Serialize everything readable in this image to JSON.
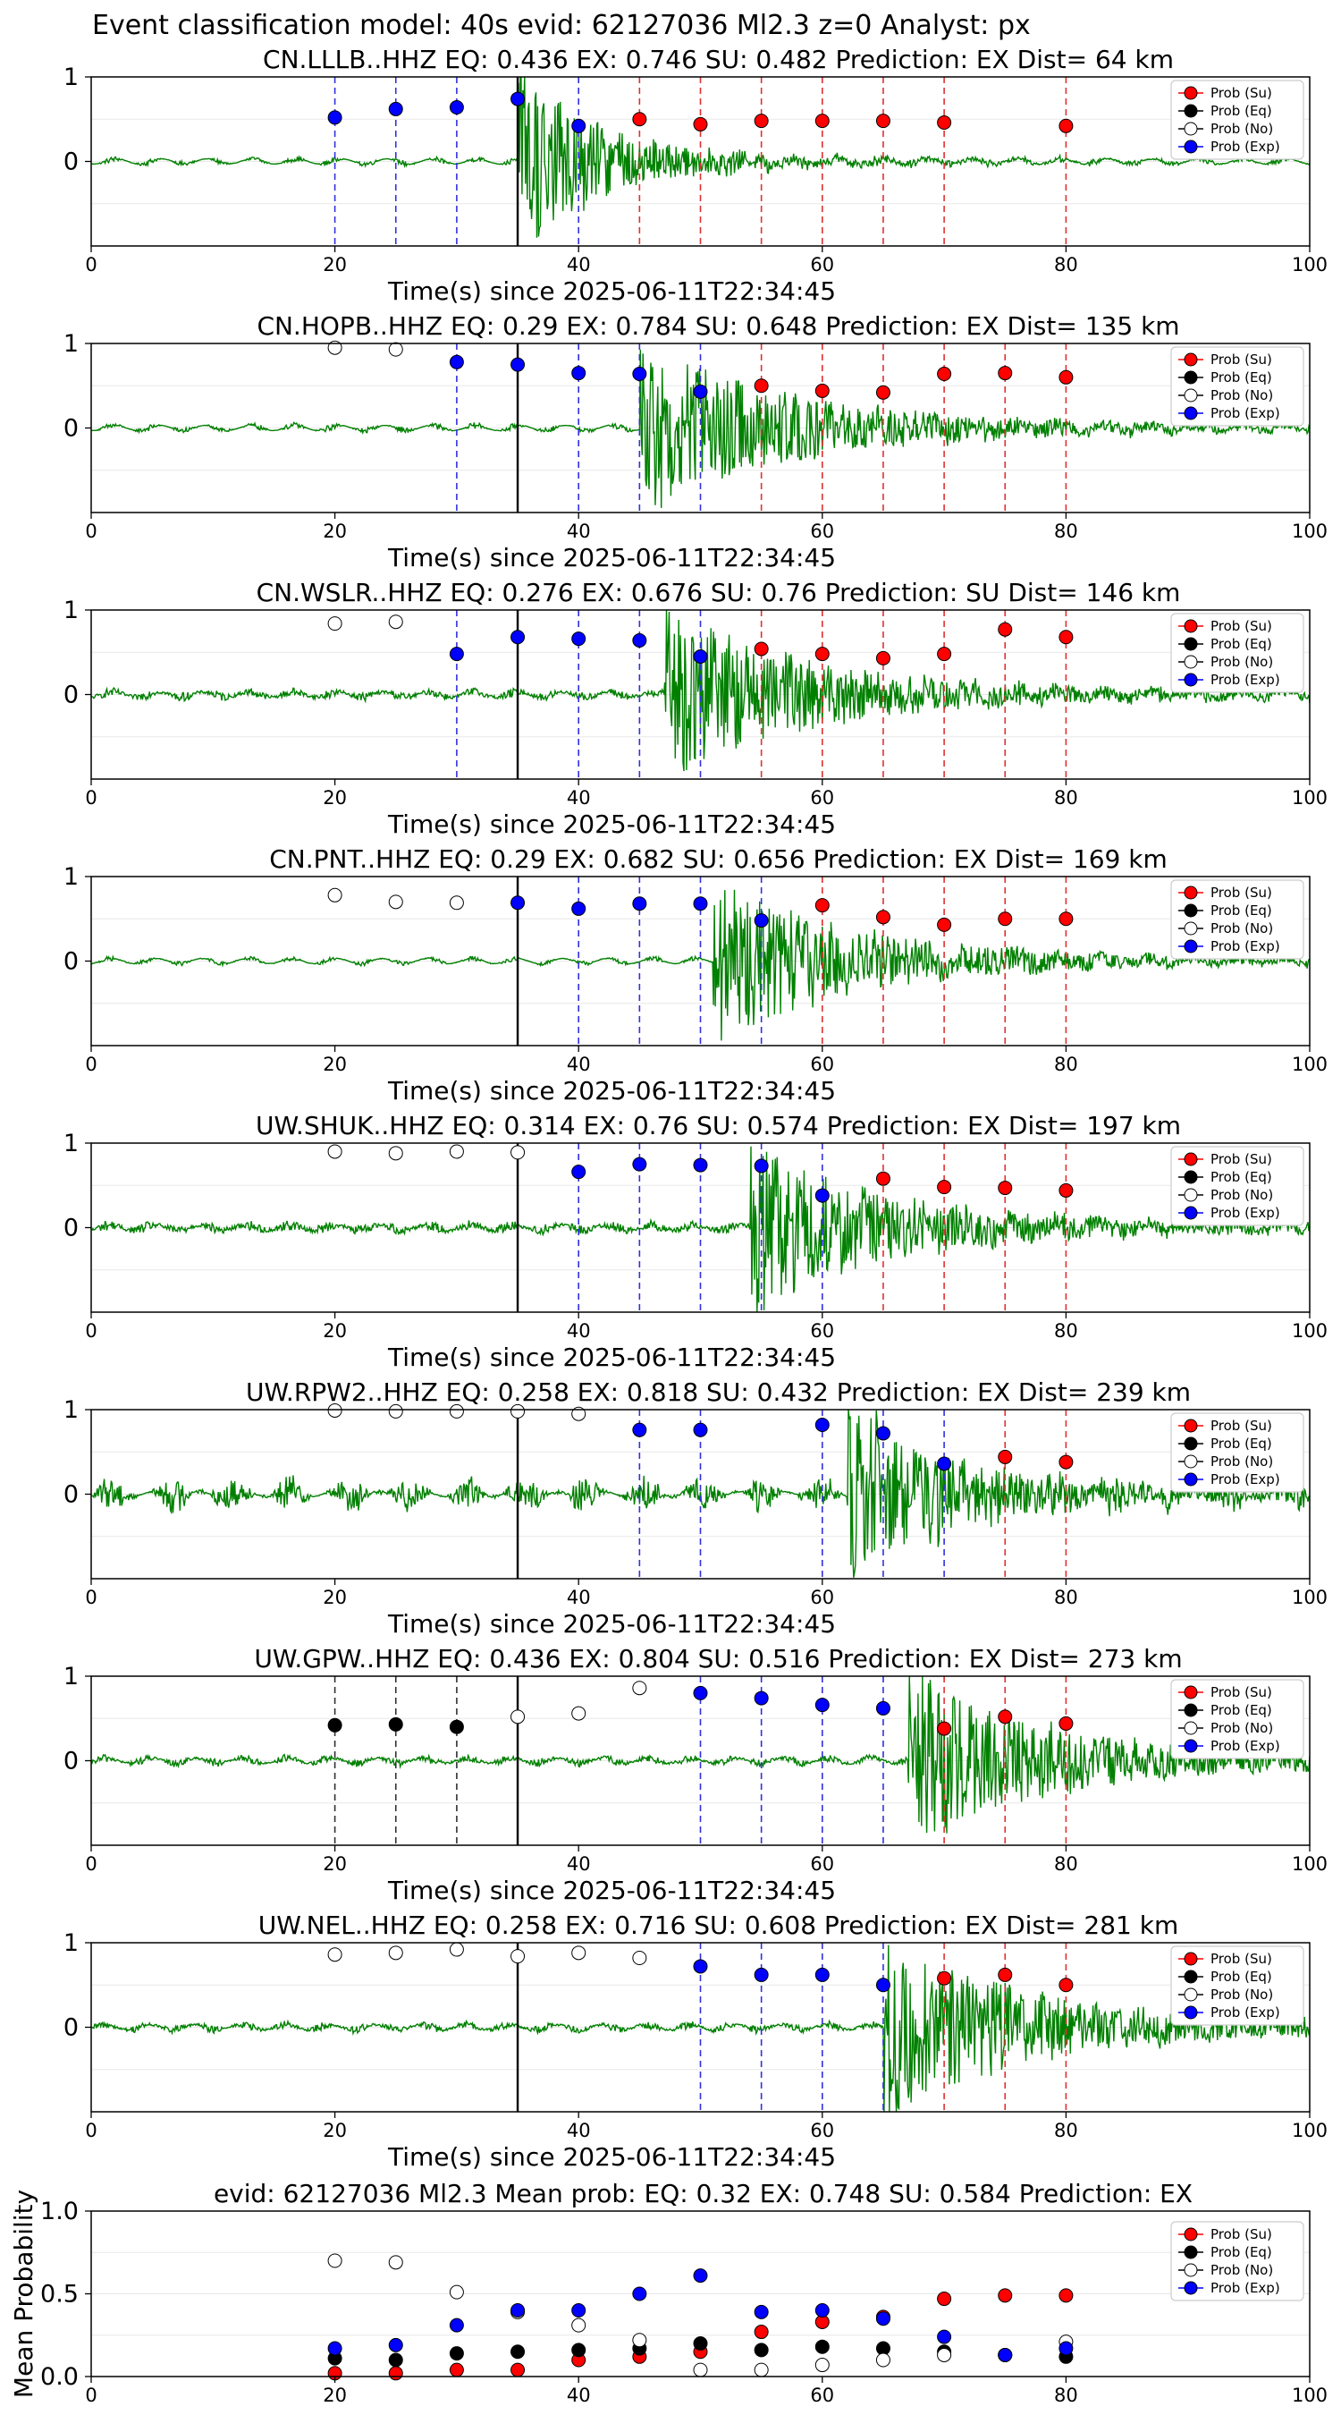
{
  "suptitle": "Event classification model: 40s evid: 62127036 Ml2.3 z=0 Analyst: px",
  "legend_labels": [
    "Prob (Su)",
    "Prob (Eq)",
    "Prob (No)",
    "Prob (Exp)"
  ],
  "colors": {
    "su": "#ff0000",
    "eq": "#000000",
    "no": "#ffffff",
    "exp": "#0000ff",
    "trace": "#008000",
    "line_su": "#e03030",
    "line_exp": "#3030e0",
    "line_eq": "#303030"
  },
  "chart_data": [
    {
      "type": "scatter",
      "title": "CN.LLLB..HHZ   EQ: 0.436  EX: 0.746  SU: 0.482   Prediction: EX    Dist= 64 km",
      "xlabel": "Time(s) since 2025-06-11T22:34:45",
      "xlim": [
        0,
        100
      ],
      "ylim": [
        -1,
        1
      ],
      "xticks": [
        0,
        20,
        40,
        60,
        80,
        100
      ],
      "yticks": [
        0,
        1
      ],
      "pick_time": 35,
      "signal": {
        "onset": 35,
        "amp": 1.0,
        "duration": 16,
        "noise": 0.025
      },
      "points": [
        {
          "t": 20,
          "cls": "exp",
          "p": 0.52
        },
        {
          "t": 25,
          "cls": "exp",
          "p": 0.62
        },
        {
          "t": 30,
          "cls": "exp",
          "p": 0.64
        },
        {
          "t": 35,
          "cls": "exp",
          "p": 0.74
        },
        {
          "t": 40,
          "cls": "exp",
          "p": 0.42
        },
        {
          "t": 45,
          "cls": "su",
          "p": 0.5
        },
        {
          "t": 50,
          "cls": "su",
          "p": 0.44
        },
        {
          "t": 55,
          "cls": "su",
          "p": 0.48
        },
        {
          "t": 60,
          "cls": "su",
          "p": 0.48
        },
        {
          "t": 65,
          "cls": "su",
          "p": 0.48
        },
        {
          "t": 70,
          "cls": "su",
          "p": 0.46
        },
        {
          "t": 80,
          "cls": "su",
          "p": 0.42
        }
      ]
    },
    {
      "type": "scatter",
      "title": "CN.HOPB..HHZ   EQ: 0.29  EX: 0.784  SU: 0.648   Prediction: EX    Dist= 135 km",
      "xlabel": "Time(s) since 2025-06-11T22:34:45",
      "xlim": [
        0,
        100
      ],
      "ylim": [
        -1,
        1
      ],
      "xticks": [
        0,
        20,
        40,
        60,
        80,
        100
      ],
      "yticks": [
        0,
        1
      ],
      "pick_time": 35,
      "signal": {
        "onset": 45,
        "amp": 0.9,
        "duration": 28,
        "noise": 0.03
      },
      "points": [
        {
          "t": 20,
          "cls": "no",
          "p": 0.95
        },
        {
          "t": 25,
          "cls": "no",
          "p": 0.93
        },
        {
          "t": 30,
          "cls": "exp",
          "p": 0.78
        },
        {
          "t": 35,
          "cls": "exp",
          "p": 0.75
        },
        {
          "t": 40,
          "cls": "exp",
          "p": 0.65
        },
        {
          "t": 45,
          "cls": "exp",
          "p": 0.64
        },
        {
          "t": 50,
          "cls": "exp",
          "p": 0.43
        },
        {
          "t": 55,
          "cls": "su",
          "p": 0.5
        },
        {
          "t": 60,
          "cls": "su",
          "p": 0.44
        },
        {
          "t": 65,
          "cls": "su",
          "p": 0.42
        },
        {
          "t": 70,
          "cls": "su",
          "p": 0.64
        },
        {
          "t": 75,
          "cls": "su",
          "p": 0.65
        },
        {
          "t": 80,
          "cls": "su",
          "p": 0.6
        }
      ]
    },
    {
      "type": "scatter",
      "title": "CN.WSLR..HHZ   EQ: 0.276  EX: 0.676  SU: 0.76   Prediction: SU    Dist= 146 km",
      "xlabel": "Time(s) since 2025-06-11T22:34:45",
      "xlim": [
        0,
        100
      ],
      "ylim": [
        -1,
        1
      ],
      "xticks": [
        0,
        20,
        40,
        60,
        80,
        100
      ],
      "yticks": [
        0,
        1
      ],
      "pick_time": 35,
      "signal": {
        "onset": 47,
        "amp": 0.9,
        "duration": 28,
        "noise": 0.06
      },
      "points": [
        {
          "t": 20,
          "cls": "no",
          "p": 0.84
        },
        {
          "t": 25,
          "cls": "no",
          "p": 0.86
        },
        {
          "t": 30,
          "cls": "exp",
          "p": 0.48
        },
        {
          "t": 35,
          "cls": "exp",
          "p": 0.68
        },
        {
          "t": 40,
          "cls": "exp",
          "p": 0.66
        },
        {
          "t": 45,
          "cls": "exp",
          "p": 0.64
        },
        {
          "t": 50,
          "cls": "exp",
          "p": 0.45
        },
        {
          "t": 55,
          "cls": "su",
          "p": 0.54
        },
        {
          "t": 60,
          "cls": "su",
          "p": 0.48
        },
        {
          "t": 65,
          "cls": "su",
          "p": 0.43
        },
        {
          "t": 70,
          "cls": "su",
          "p": 0.48
        },
        {
          "t": 75,
          "cls": "su",
          "p": 0.77
        },
        {
          "t": 80,
          "cls": "su",
          "p": 0.68
        }
      ]
    },
    {
      "type": "scatter",
      "title": "CN.PNT..HHZ   EQ: 0.29  EX: 0.682  SU: 0.656   Prediction: EX    Dist= 169 km",
      "xlabel": "Time(s) since 2025-06-11T22:34:45",
      "xlim": [
        0,
        100
      ],
      "ylim": [
        -1,
        1
      ],
      "xticks": [
        0,
        20,
        40,
        60,
        80,
        100
      ],
      "yticks": [
        0,
        1
      ],
      "pick_time": 35,
      "signal": {
        "onset": 51,
        "amp": 0.9,
        "duration": 26,
        "noise": 0.02
      },
      "points": [
        {
          "t": 20,
          "cls": "no",
          "p": 0.78
        },
        {
          "t": 25,
          "cls": "no",
          "p": 0.7
        },
        {
          "t": 30,
          "cls": "no",
          "p": 0.69
        },
        {
          "t": 35,
          "cls": "exp",
          "p": 0.69
        },
        {
          "t": 40,
          "cls": "exp",
          "p": 0.62
        },
        {
          "t": 45,
          "cls": "exp",
          "p": 0.68
        },
        {
          "t": 50,
          "cls": "exp",
          "p": 0.68
        },
        {
          "t": 55,
          "cls": "exp",
          "p": 0.48
        },
        {
          "t": 60,
          "cls": "su",
          "p": 0.66
        },
        {
          "t": 65,
          "cls": "su",
          "p": 0.52
        },
        {
          "t": 70,
          "cls": "su",
          "p": 0.43
        },
        {
          "t": 75,
          "cls": "su",
          "p": 0.5
        },
        {
          "t": 80,
          "cls": "su",
          "p": 0.5
        }
      ]
    },
    {
      "type": "scatter",
      "title": "UW.SHUK..HHZ   EQ: 0.314  EX: 0.76  SU: 0.574   Prediction: EX    Dist= 197 km",
      "xlabel": "Time(s) since 2025-06-11T22:34:45",
      "xlim": [
        0,
        100
      ],
      "ylim": [
        -1,
        1
      ],
      "xticks": [
        0,
        20,
        40,
        60,
        80,
        100
      ],
      "yticks": [
        0,
        1
      ],
      "pick_time": 35,
      "signal": {
        "onset": 54,
        "amp": 0.9,
        "duration": 26,
        "noise": 0.07
      },
      "points": [
        {
          "t": 20,
          "cls": "no",
          "p": 0.9
        },
        {
          "t": 25,
          "cls": "no",
          "p": 0.88
        },
        {
          "t": 30,
          "cls": "no",
          "p": 0.9
        },
        {
          "t": 35,
          "cls": "no",
          "p": 0.89
        },
        {
          "t": 40,
          "cls": "exp",
          "p": 0.66
        },
        {
          "t": 45,
          "cls": "exp",
          "p": 0.75
        },
        {
          "t": 50,
          "cls": "exp",
          "p": 0.74
        },
        {
          "t": 55,
          "cls": "exp",
          "p": 0.73
        },
        {
          "t": 60,
          "cls": "exp",
          "p": 0.38
        },
        {
          "t": 65,
          "cls": "su",
          "p": 0.58
        },
        {
          "t": 70,
          "cls": "su",
          "p": 0.48
        },
        {
          "t": 75,
          "cls": "su",
          "p": 0.47
        },
        {
          "t": 80,
          "cls": "su",
          "p": 0.44
        }
      ]
    },
    {
      "type": "scatter",
      "title": "UW.RPW2..HHZ   EQ: 0.258  EX: 0.818  SU: 0.432   Prediction: EX    Dist= 239 km",
      "xlabel": "Time(s) since 2025-06-11T22:34:45",
      "xlim": [
        0,
        100
      ],
      "ylim": [
        -1,
        1
      ],
      "xticks": [
        0,
        20,
        40,
        60,
        80,
        100
      ],
      "yticks": [
        0,
        1
      ],
      "pick_time": 35,
      "signal": {
        "onset": 62,
        "amp": 0.85,
        "duration": 22,
        "noise": 0.15
      },
      "points": [
        {
          "t": 20,
          "cls": "no",
          "p": 0.99
        },
        {
          "t": 25,
          "cls": "no",
          "p": 0.98
        },
        {
          "t": 30,
          "cls": "no",
          "p": 0.98
        },
        {
          "t": 35,
          "cls": "no",
          "p": 0.98
        },
        {
          "t": 40,
          "cls": "no",
          "p": 0.95
        },
        {
          "t": 45,
          "cls": "exp",
          "p": 0.76
        },
        {
          "t": 50,
          "cls": "exp",
          "p": 0.76
        },
        {
          "t": 60,
          "cls": "exp",
          "p": 0.82
        },
        {
          "t": 65,
          "cls": "exp",
          "p": 0.72
        },
        {
          "t": 70,
          "cls": "exp",
          "p": 0.36
        },
        {
          "t": 75,
          "cls": "su",
          "p": 0.44
        },
        {
          "t": 80,
          "cls": "su",
          "p": 0.38
        }
      ]
    },
    {
      "type": "scatter",
      "title": "UW.GPW..HHZ   EQ: 0.436  EX: 0.804  SU: 0.516   Prediction: EX    Dist= 273 km",
      "xlabel": "Time(s) since 2025-06-11T22:34:45",
      "xlim": [
        0,
        100
      ],
      "ylim": [
        -1,
        1
      ],
      "xticks": [
        0,
        20,
        40,
        60,
        80,
        100
      ],
      "yticks": [
        0,
        1
      ],
      "pick_time": 35,
      "signal": {
        "onset": 67,
        "amp": 0.9,
        "duration": 28,
        "noise": 0.05
      },
      "points": [
        {
          "t": 20,
          "cls": "eq",
          "p": 0.42
        },
        {
          "t": 25,
          "cls": "eq",
          "p": 0.43
        },
        {
          "t": 30,
          "cls": "eq",
          "p": 0.4
        },
        {
          "t": 35,
          "cls": "no",
          "p": 0.52
        },
        {
          "t": 40,
          "cls": "no",
          "p": 0.56
        },
        {
          "t": 45,
          "cls": "no",
          "p": 0.86
        },
        {
          "t": 50,
          "cls": "exp",
          "p": 0.8
        },
        {
          "t": 55,
          "cls": "exp",
          "p": 0.74
        },
        {
          "t": 60,
          "cls": "exp",
          "p": 0.66
        },
        {
          "t": 65,
          "cls": "exp",
          "p": 0.62
        },
        {
          "t": 70,
          "cls": "su",
          "p": 0.38
        },
        {
          "t": 75,
          "cls": "su",
          "p": 0.52
        },
        {
          "t": 80,
          "cls": "su",
          "p": 0.44
        }
      ]
    },
    {
      "type": "scatter",
      "title": "UW.NEL..HHZ   EQ: 0.258  EX: 0.716  SU: 0.608   Prediction: EX    Dist= 281 km",
      "xlabel": "Time(s) since 2025-06-11T22:34:45",
      "xlim": [
        0,
        100
      ],
      "ylim": [
        -1,
        1
      ],
      "xticks": [
        0,
        20,
        40,
        60,
        80,
        100
      ],
      "yticks": [
        0,
        1
      ],
      "pick_time": 35,
      "signal": {
        "onset": 65,
        "amp": 0.9,
        "duration": 30,
        "noise": 0.05
      },
      "points": [
        {
          "t": 20,
          "cls": "no",
          "p": 0.86
        },
        {
          "t": 25,
          "cls": "no",
          "p": 0.88
        },
        {
          "t": 30,
          "cls": "no",
          "p": 0.92
        },
        {
          "t": 35,
          "cls": "no",
          "p": 0.84
        },
        {
          "t": 40,
          "cls": "no",
          "p": 0.88
        },
        {
          "t": 45,
          "cls": "no",
          "p": 0.82
        },
        {
          "t": 50,
          "cls": "exp",
          "p": 0.72
        },
        {
          "t": 55,
          "cls": "exp",
          "p": 0.62
        },
        {
          "t": 60,
          "cls": "exp",
          "p": 0.62
        },
        {
          "t": 65,
          "cls": "exp",
          "p": 0.5
        },
        {
          "t": 70,
          "cls": "su",
          "p": 0.58
        },
        {
          "t": 75,
          "cls": "su",
          "p": 0.62
        },
        {
          "t": 80,
          "cls": "su",
          "p": 0.5
        }
      ]
    },
    {
      "type": "scatter",
      "title": "evid: 62127036  Ml2.3   Mean prob:   EQ: 0.32  EX: 0.748  SU: 0.584   Prediction: EX",
      "ylabel": "Mean Probability",
      "xlim": [
        0,
        100
      ],
      "ylim": [
        0,
        1
      ],
      "xticks": [
        0,
        20,
        40,
        60,
        80,
        100
      ],
      "yticks": [
        0.0,
        0.5,
        1.0
      ],
      "x": [
        20,
        25,
        30,
        35,
        40,
        45,
        50,
        55,
        60,
        65,
        70,
        75,
        80
      ],
      "series": [
        {
          "cls": "su",
          "values": [
            0.02,
            0.02,
            0.04,
            0.04,
            0.1,
            0.12,
            0.15,
            0.27,
            0.33,
            0.36,
            0.47,
            0.49,
            0.49
          ]
        },
        {
          "cls": "eq",
          "values": [
            0.11,
            0.1,
            0.14,
            0.15,
            0.16,
            0.17,
            0.2,
            0.16,
            0.18,
            0.17,
            0.15,
            0.13,
            0.12
          ]
        },
        {
          "cls": "no",
          "values": [
            0.7,
            0.69,
            0.51,
            0.39,
            0.31,
            0.22,
            0.04,
            0.04,
            0.07,
            0.1,
            0.13,
            0.13,
            0.21
          ]
        },
        {
          "cls": "exp",
          "values": [
            0.17,
            0.19,
            0.31,
            0.4,
            0.4,
            0.5,
            0.61,
            0.39,
            0.4,
            0.35,
            0.24,
            0.13,
            0.17
          ]
        }
      ]
    }
  ]
}
